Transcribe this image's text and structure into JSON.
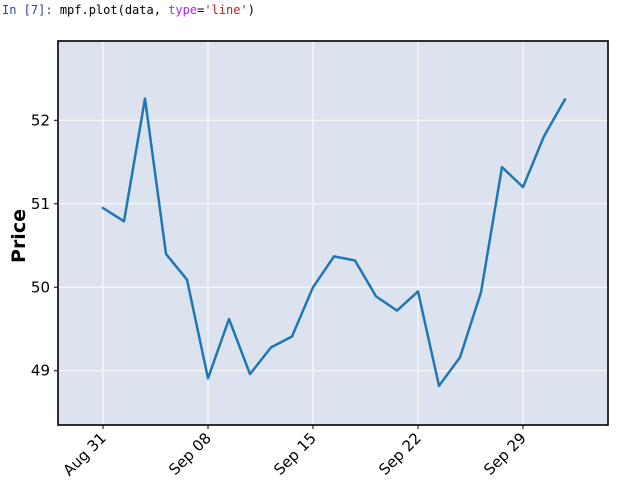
{
  "cell": {
    "prompt": "In [7]:",
    "code_prefix": "mpf.plot(data, ",
    "code_kw": "type",
    "code_eq": "=",
    "code_str": "'line'",
    "code_suffix": ")"
  },
  "chart_data": {
    "type": "line",
    "title": "",
    "xlabel": "",
    "ylabel": "Price",
    "ylim": [
      48.35,
      52.95
    ],
    "yticks": [
      49,
      50,
      51,
      52
    ],
    "xticks": [
      "Aug 31",
      "Sep 08",
      "Sep 15",
      "Sep 22",
      "Sep 29"
    ],
    "xtick_indices": [
      0,
      5,
      10,
      15,
      20
    ],
    "grid": true,
    "colors": {
      "line": "#1f77b4",
      "background": "#dce3ee",
      "grid": "#ffffff",
      "frame": "#000000"
    },
    "series": [
      {
        "values": [
          50.95,
          50.79,
          52.26,
          50.4,
          50.09,
          48.91,
          49.62,
          48.96,
          49.28,
          49.41,
          50.0,
          50.37,
          50.32,
          49.89,
          49.72,
          49.95,
          48.82,
          49.16,
          49.94,
          51.44,
          51.2,
          51.81,
          52.25
        ]
      }
    ]
  }
}
